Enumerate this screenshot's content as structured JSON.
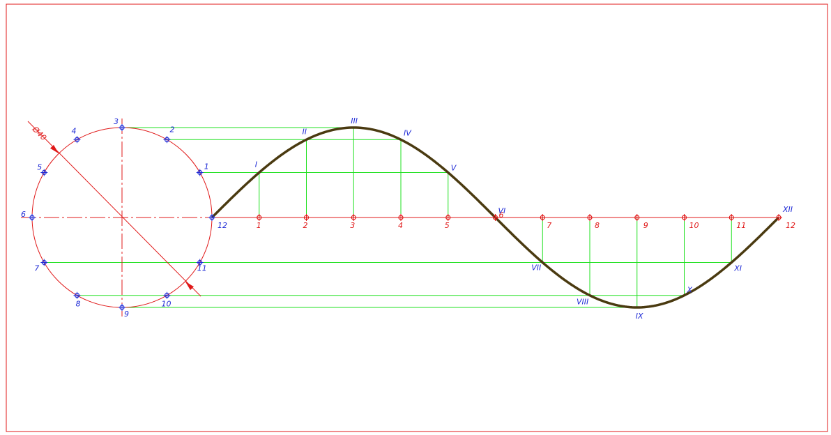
{
  "colors": {
    "frame": "#e01818",
    "circle": "#e01818",
    "axis": "#e01818",
    "projection": "#1fe01f",
    "curve": "#4a3a10",
    "circle_label": "#1f2bd6",
    "axis_label": "#e01818",
    "curve_label": "#1f2bd6"
  },
  "dimension": {
    "text": "Ø40"
  },
  "circle_points": [
    {
      "label": "1"
    },
    {
      "label": "2"
    },
    {
      "label": "3"
    },
    {
      "label": "4"
    },
    {
      "label": "5"
    },
    {
      "label": "6"
    },
    {
      "label": "7"
    },
    {
      "label": "8"
    },
    {
      "label": "9"
    },
    {
      "label": "10"
    },
    {
      "label": "11"
    },
    {
      "label": "12"
    }
  ],
  "axis_points": [
    {
      "label": "1"
    },
    {
      "label": "2"
    },
    {
      "label": "3"
    },
    {
      "label": "4"
    },
    {
      "label": "5"
    },
    {
      "label": "6"
    },
    {
      "label": "7"
    },
    {
      "label": "8"
    },
    {
      "label": "9"
    },
    {
      "label": "10"
    },
    {
      "label": "11"
    },
    {
      "label": "12"
    }
  ],
  "curve_points": [
    {
      "label": "I"
    },
    {
      "label": "II"
    },
    {
      "label": "III"
    },
    {
      "label": "IV"
    },
    {
      "label": "V"
    },
    {
      "label": "VI"
    },
    {
      "label": "VII"
    },
    {
      "label": "VIII"
    },
    {
      "label": "IX"
    },
    {
      "label": "X"
    },
    {
      "label": "XI"
    },
    {
      "label": "XII"
    }
  ]
}
